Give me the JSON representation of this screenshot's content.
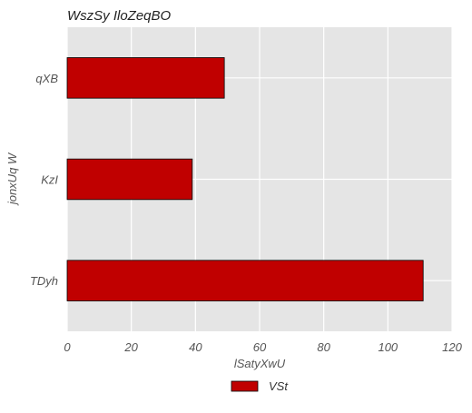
{
  "chart_data": {
    "type": "bar",
    "orientation": "horizontal",
    "title": "WszSy IloZeqBO",
    "xlabel": "lSatyXwU",
    "ylabel": "jonxUq W",
    "categories": [
      "qXB",
      "KzI",
      "TDyh"
    ],
    "series": [
      {
        "name": "VSt",
        "values": [
          49,
          39,
          111
        ],
        "color": "#c00000"
      }
    ],
    "xlim": [
      0,
      120
    ],
    "xticks": [
      0,
      20,
      40,
      60,
      80,
      100,
      120
    ],
    "grid": true,
    "legend_position": "bottom-center",
    "background_color": "#e5e5e5"
  }
}
